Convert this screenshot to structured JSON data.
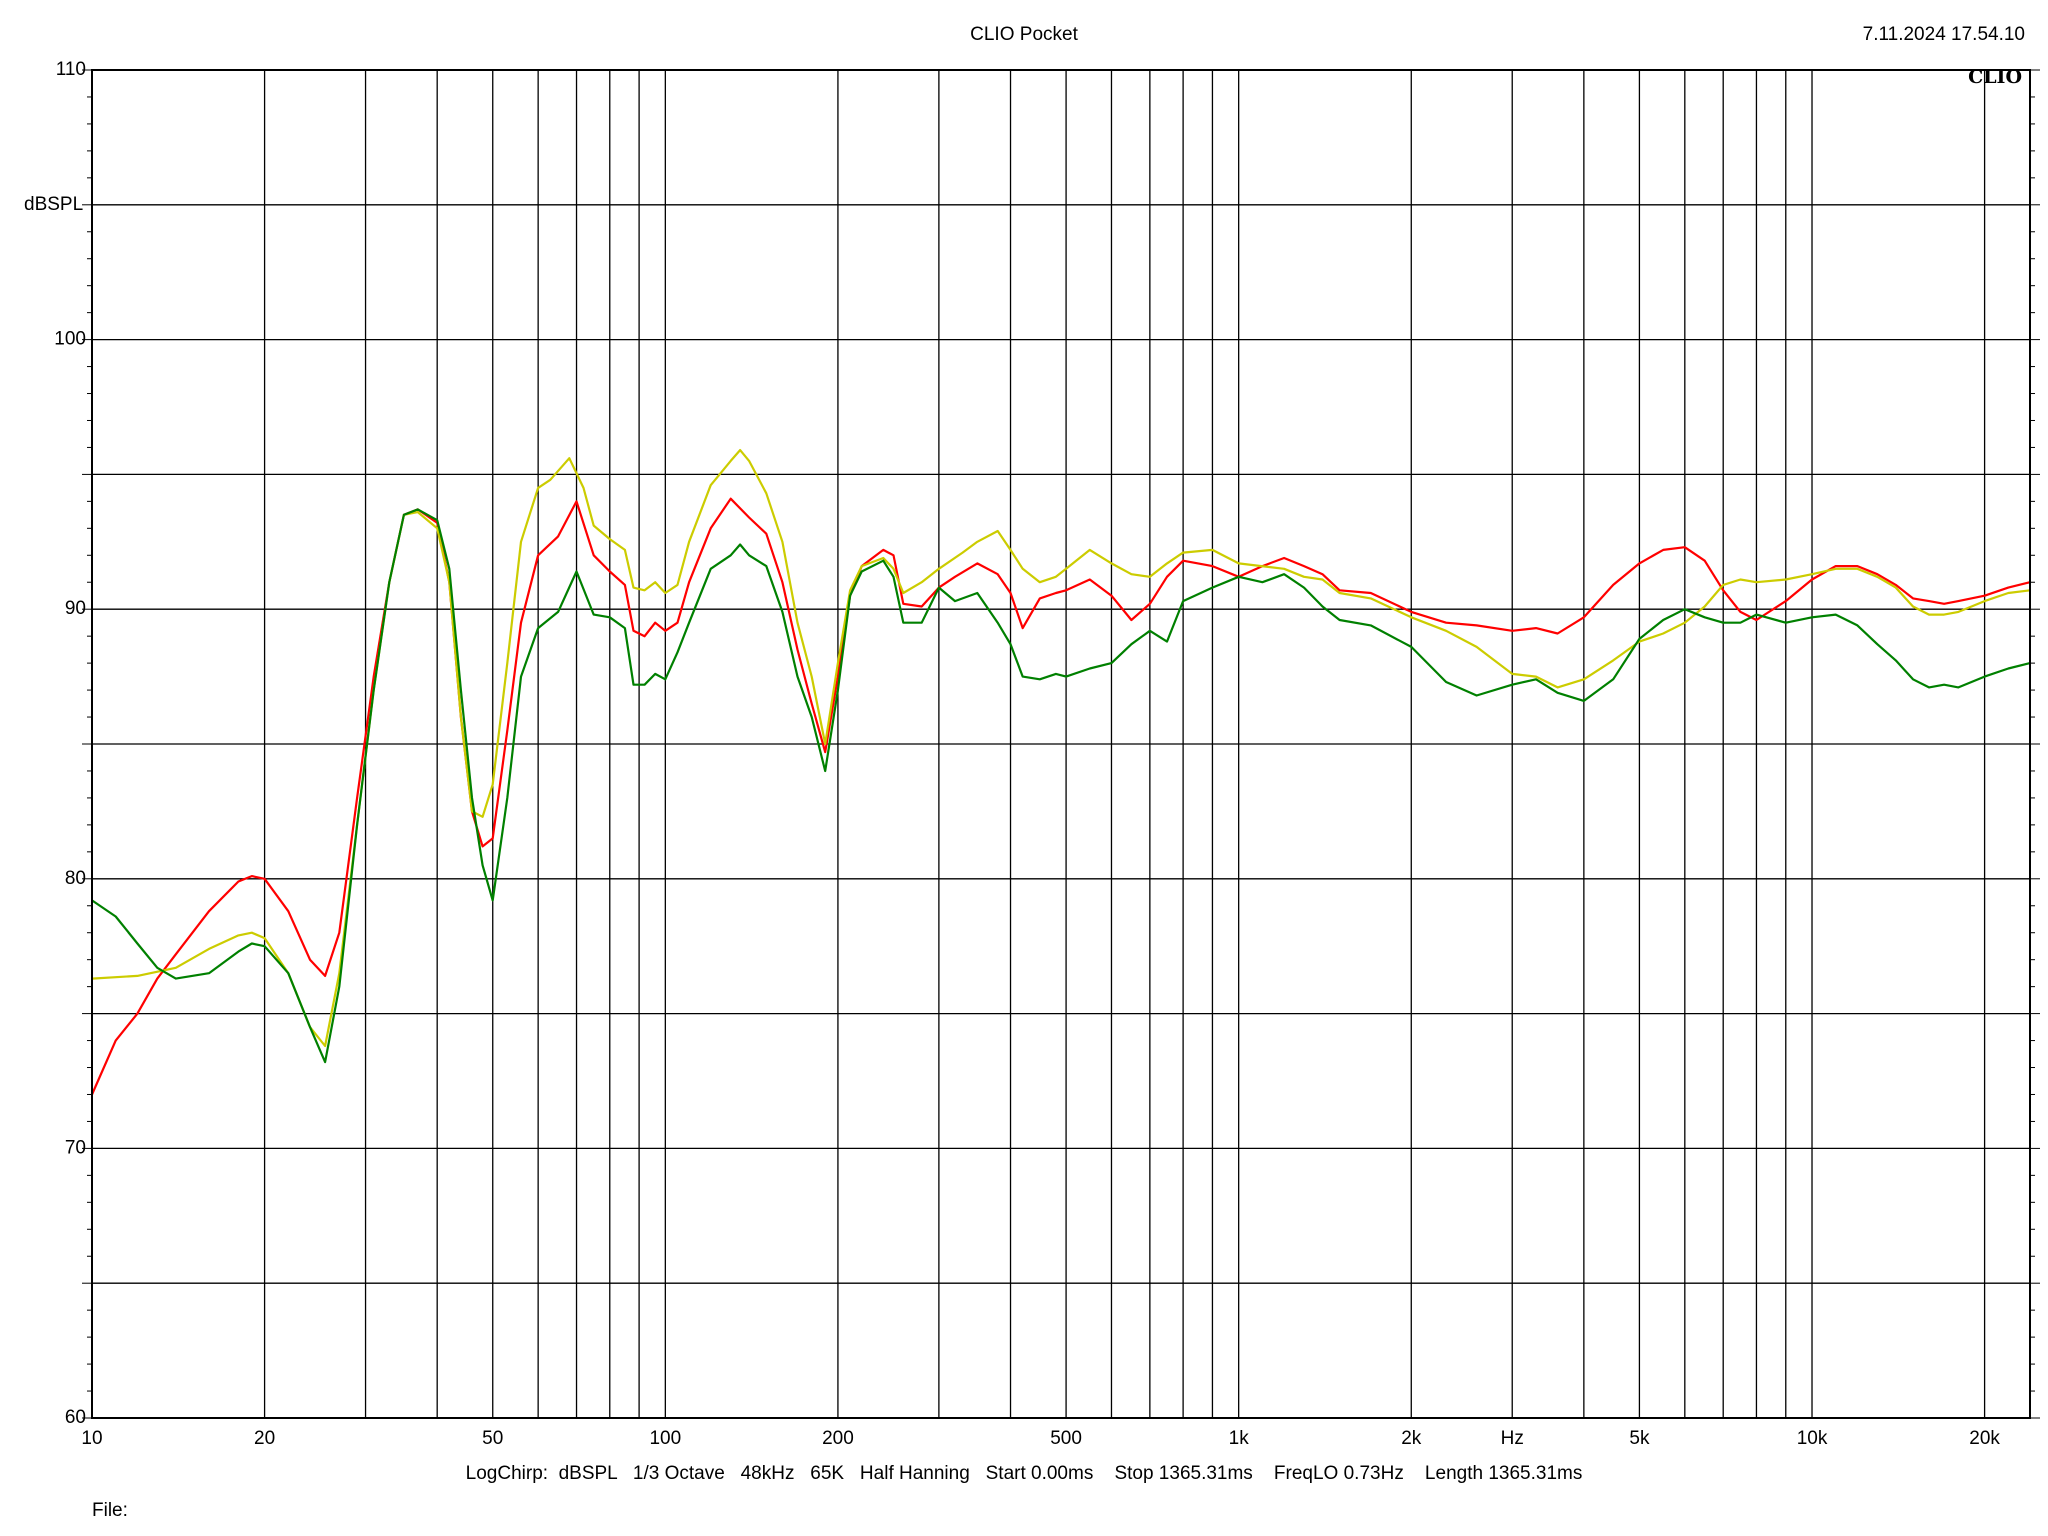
{
  "header": {
    "title": "CLIO Pocket",
    "timestamp": "7.11.2024 17.54.10",
    "brand": "CLIO"
  },
  "footer": {
    "info": "LogChirp:  dBSPL   1/3 Octave   48kHz   65K   Half Hanning   Start 0.00ms    Stop 1365.31ms    FreqLO 0.73Hz    Length 1365.31ms",
    "file_label": "File:"
  },
  "chart_data": {
    "type": "line",
    "title": "CLIO Pocket",
    "xlabel": "Hz",
    "ylabel": "dBSPL",
    "xscale": "log",
    "xlim": [
      10,
      24000
    ],
    "ylim": [
      60,
      110
    ],
    "grid": true,
    "x_ticks": [
      10,
      20,
      50,
      100,
      200,
      500,
      1000,
      2000,
      5000,
      10000,
      20000
    ],
    "x_tick_labels": [
      "10",
      "20",
      "50",
      "100",
      "200",
      "500",
      "1k",
      "2k",
      "5k",
      "10k",
      "20k"
    ],
    "y_ticks": [
      60,
      70,
      80,
      90,
      100,
      110
    ],
    "y_tick_labels": [
      "60",
      "70",
      "80",
      "90",
      "100",
      "110"
    ],
    "series": [
      {
        "color": "#ff0000",
        "points": [
          [
            10,
            72
          ],
          [
            11,
            74
          ],
          [
            12,
            75
          ],
          [
            13,
            76.3
          ],
          [
            14,
            77.2
          ],
          [
            16,
            78.8
          ],
          [
            18,
            79.9
          ],
          [
            19,
            80.1
          ],
          [
            20,
            80
          ],
          [
            22,
            78.8
          ],
          [
            24,
            77
          ],
          [
            25.5,
            76.4
          ],
          [
            27,
            78
          ],
          [
            29,
            83
          ],
          [
            31,
            87.5
          ],
          [
            33,
            91
          ],
          [
            35,
            93.5
          ],
          [
            37,
            93.7
          ],
          [
            40,
            93.2
          ],
          [
            42,
            91
          ],
          [
            44,
            86
          ],
          [
            46,
            82.5
          ],
          [
            48,
            81.2
          ],
          [
            50,
            81.5
          ],
          [
            53,
            85.5
          ],
          [
            56,
            89.5
          ],
          [
            60,
            92
          ],
          [
            65,
            92.7
          ],
          [
            70,
            94
          ],
          [
            75,
            92
          ],
          [
            80,
            91.4
          ],
          [
            85,
            90.9
          ],
          [
            88,
            89.2
          ],
          [
            92,
            89
          ],
          [
            96,
            89.5
          ],
          [
            100,
            89.2
          ],
          [
            105,
            89.5
          ],
          [
            110,
            91
          ],
          [
            120,
            93
          ],
          [
            130,
            94.1
          ],
          [
            140,
            93.4
          ],
          [
            150,
            92.8
          ],
          [
            160,
            91
          ],
          [
            170,
            88.5
          ],
          [
            180,
            86.5
          ],
          [
            190,
            84.7
          ],
          [
            200,
            87.5
          ],
          [
            210,
            90.5
          ],
          [
            220,
            91.6
          ],
          [
            240,
            92.2
          ],
          [
            250,
            92
          ],
          [
            260,
            90.2
          ],
          [
            280,
            90.1
          ],
          [
            300,
            90.8
          ],
          [
            320,
            91.2
          ],
          [
            350,
            91.7
          ],
          [
            380,
            91.3
          ],
          [
            400,
            90.6
          ],
          [
            420,
            89.3
          ],
          [
            450,
            90.4
          ],
          [
            480,
            90.6
          ],
          [
            500,
            90.7
          ],
          [
            550,
            91.1
          ],
          [
            600,
            90.5
          ],
          [
            650,
            89.6
          ],
          [
            700,
            90.2
          ],
          [
            750,
            91.2
          ],
          [
            800,
            91.8
          ],
          [
            900,
            91.6
          ],
          [
            1000,
            91.2
          ],
          [
            1100,
            91.6
          ],
          [
            1200,
            91.9
          ],
          [
            1300,
            91.6
          ],
          [
            1400,
            91.3
          ],
          [
            1500,
            90.7
          ],
          [
            1700,
            90.6
          ],
          [
            2000,
            89.9
          ],
          [
            2300,
            89.5
          ],
          [
            2600,
            89.4
          ],
          [
            3000,
            89.2
          ],
          [
            3300,
            89.3
          ],
          [
            3600,
            89.1
          ],
          [
            4000,
            89.7
          ],
          [
            4500,
            90.9
          ],
          [
            5000,
            91.7
          ],
          [
            5500,
            92.2
          ],
          [
            6000,
            92.3
          ],
          [
            6500,
            91.8
          ],
          [
            7000,
            90.7
          ],
          [
            7500,
            89.9
          ],
          [
            8000,
            89.6
          ],
          [
            9000,
            90.3
          ],
          [
            10000,
            91.1
          ],
          [
            11000,
            91.6
          ],
          [
            12000,
            91.6
          ],
          [
            13000,
            91.3
          ],
          [
            14000,
            90.9
          ],
          [
            15000,
            90.4
          ],
          [
            16000,
            90.3
          ],
          [
            17000,
            90.2
          ],
          [
            18000,
            90.3
          ],
          [
            20000,
            90.5
          ],
          [
            22000,
            90.8
          ],
          [
            24000,
            91
          ]
        ]
      },
      {
        "color": "#cccc00",
        "points": [
          [
            10,
            76.3
          ],
          [
            12,
            76.4
          ],
          [
            14,
            76.7
          ],
          [
            16,
            77.4
          ],
          [
            18,
            77.9
          ],
          [
            19,
            78
          ],
          [
            20,
            77.8
          ],
          [
            22,
            76.5
          ],
          [
            24,
            74.5
          ],
          [
            25.5,
            73.8
          ],
          [
            27,
            76.5
          ],
          [
            29,
            82
          ],
          [
            31,
            87
          ],
          [
            33,
            91
          ],
          [
            35,
            93.5
          ],
          [
            37,
            93.6
          ],
          [
            40,
            93
          ],
          [
            42,
            91
          ],
          [
            44,
            86
          ],
          [
            46,
            82.5
          ],
          [
            48,
            82.3
          ],
          [
            50,
            83.5
          ],
          [
            53,
            88
          ],
          [
            56,
            92.5
          ],
          [
            60,
            94.5
          ],
          [
            63,
            94.8
          ],
          [
            68,
            95.6
          ],
          [
            72,
            94.5
          ],
          [
            75,
            93.1
          ],
          [
            80,
            92.6
          ],
          [
            85,
            92.2
          ],
          [
            88,
            90.8
          ],
          [
            92,
            90.7
          ],
          [
            96,
            91
          ],
          [
            100,
            90.6
          ],
          [
            105,
            90.9
          ],
          [
            110,
            92.5
          ],
          [
            120,
            94.6
          ],
          [
            130,
            95.5
          ],
          [
            135,
            95.9
          ],
          [
            140,
            95.5
          ],
          [
            150,
            94.3
          ],
          [
            160,
            92.5
          ],
          [
            170,
            89.5
          ],
          [
            180,
            87.5
          ],
          [
            190,
            85
          ],
          [
            200,
            88
          ],
          [
            210,
            90.7
          ],
          [
            220,
            91.6
          ],
          [
            240,
            91.9
          ],
          [
            250,
            91.5
          ],
          [
            260,
            90.6
          ],
          [
            280,
            91
          ],
          [
            300,
            91.5
          ],
          [
            330,
            92.1
          ],
          [
            350,
            92.5
          ],
          [
            380,
            92.9
          ],
          [
            400,
            92.2
          ],
          [
            420,
            91.5
          ],
          [
            450,
            91
          ],
          [
            480,
            91.2
          ],
          [
            500,
            91.5
          ],
          [
            550,
            92.2
          ],
          [
            600,
            91.7
          ],
          [
            650,
            91.3
          ],
          [
            700,
            91.2
          ],
          [
            750,
            91.7
          ],
          [
            800,
            92.1
          ],
          [
            900,
            92.2
          ],
          [
            1000,
            91.7
          ],
          [
            1200,
            91.5
          ],
          [
            1300,
            91.2
          ],
          [
            1400,
            91.1
          ],
          [
            1500,
            90.6
          ],
          [
            1700,
            90.4
          ],
          [
            2000,
            89.7
          ],
          [
            2300,
            89.2
          ],
          [
            2600,
            88.6
          ],
          [
            3000,
            87.6
          ],
          [
            3300,
            87.5
          ],
          [
            3600,
            87.1
          ],
          [
            4000,
            87.4
          ],
          [
            4500,
            88.1
          ],
          [
            5000,
            88.8
          ],
          [
            5500,
            89.1
          ],
          [
            6000,
            89.5
          ],
          [
            6500,
            90.1
          ],
          [
            7000,
            90.9
          ],
          [
            7500,
            91.1
          ],
          [
            8000,
            91
          ],
          [
            9000,
            91.1
          ],
          [
            10000,
            91.3
          ],
          [
            11000,
            91.5
          ],
          [
            12000,
            91.5
          ],
          [
            13000,
            91.2
          ],
          [
            14000,
            90.8
          ],
          [
            15000,
            90.1
          ],
          [
            16000,
            89.8
          ],
          [
            17000,
            89.8
          ],
          [
            18000,
            89.9
          ],
          [
            20000,
            90.3
          ],
          [
            22000,
            90.6
          ],
          [
            24000,
            90.7
          ]
        ]
      },
      {
        "color": "#008000",
        "points": [
          [
            10,
            79.2
          ],
          [
            11,
            78.6
          ],
          [
            12,
            77.6
          ],
          [
            13,
            76.7
          ],
          [
            14,
            76.3
          ],
          [
            16,
            76.5
          ],
          [
            18,
            77.3
          ],
          [
            19,
            77.6
          ],
          [
            20,
            77.5
          ],
          [
            22,
            76.5
          ],
          [
            24,
            74.5
          ],
          [
            25.5,
            73.2
          ],
          [
            27,
            76
          ],
          [
            29,
            82
          ],
          [
            31,
            87
          ],
          [
            33,
            91
          ],
          [
            35,
            93.5
          ],
          [
            37,
            93.7
          ],
          [
            40,
            93.3
          ],
          [
            42,
            91.5
          ],
          [
            44,
            87
          ],
          [
            46,
            83
          ],
          [
            48,
            80.5
          ],
          [
            50,
            79.2
          ],
          [
            53,
            83
          ],
          [
            56,
            87.5
          ],
          [
            60,
            89.3
          ],
          [
            65,
            89.9
          ],
          [
            70,
            91.4
          ],
          [
            75,
            89.8
          ],
          [
            80,
            89.7
          ],
          [
            85,
            89.3
          ],
          [
            88,
            87.2
          ],
          [
            92,
            87.2
          ],
          [
            96,
            87.6
          ],
          [
            100,
            87.4
          ],
          [
            105,
            88.4
          ],
          [
            110,
            89.5
          ],
          [
            120,
            91.5
          ],
          [
            130,
            92
          ],
          [
            135,
            92.4
          ],
          [
            140,
            92
          ],
          [
            150,
            91.6
          ],
          [
            160,
            89.9
          ],
          [
            170,
            87.5
          ],
          [
            180,
            86
          ],
          [
            190,
            84
          ],
          [
            200,
            87
          ],
          [
            210,
            90.5
          ],
          [
            220,
            91.4
          ],
          [
            240,
            91.8
          ],
          [
            250,
            91.2
          ],
          [
            260,
            89.5
          ],
          [
            280,
            89.5
          ],
          [
            300,
            90.8
          ],
          [
            320,
            90.3
          ],
          [
            350,
            90.6
          ],
          [
            380,
            89.5
          ],
          [
            400,
            88.7
          ],
          [
            420,
            87.5
          ],
          [
            450,
            87.4
          ],
          [
            480,
            87.6
          ],
          [
            500,
            87.5
          ],
          [
            550,
            87.8
          ],
          [
            600,
            88
          ],
          [
            650,
            88.7
          ],
          [
            700,
            89.2
          ],
          [
            750,
            88.8
          ],
          [
            800,
            90.3
          ],
          [
            900,
            90.8
          ],
          [
            1000,
            91.2
          ],
          [
            1100,
            91
          ],
          [
            1200,
            91.3
          ],
          [
            1300,
            90.8
          ],
          [
            1400,
            90.1
          ],
          [
            1500,
            89.6
          ],
          [
            1700,
            89.4
          ],
          [
            2000,
            88.6
          ],
          [
            2300,
            87.3
          ],
          [
            2600,
            86.8
          ],
          [
            3000,
            87.2
          ],
          [
            3300,
            87.4
          ],
          [
            3600,
            86.9
          ],
          [
            4000,
            86.6
          ],
          [
            4500,
            87.4
          ],
          [
            5000,
            88.9
          ],
          [
            5500,
            89.6
          ],
          [
            6000,
            90
          ],
          [
            6500,
            89.7
          ],
          [
            7000,
            89.5
          ],
          [
            7500,
            89.5
          ],
          [
            8000,
            89.8
          ],
          [
            9000,
            89.5
          ],
          [
            10000,
            89.7
          ],
          [
            11000,
            89.8
          ],
          [
            12000,
            89.4
          ],
          [
            13000,
            88.7
          ],
          [
            14000,
            88.1
          ],
          [
            15000,
            87.4
          ],
          [
            16000,
            87.1
          ],
          [
            17000,
            87.2
          ],
          [
            18000,
            87.1
          ],
          [
            20000,
            87.5
          ],
          [
            22000,
            87.8
          ],
          [
            24000,
            88
          ]
        ]
      }
    ]
  }
}
